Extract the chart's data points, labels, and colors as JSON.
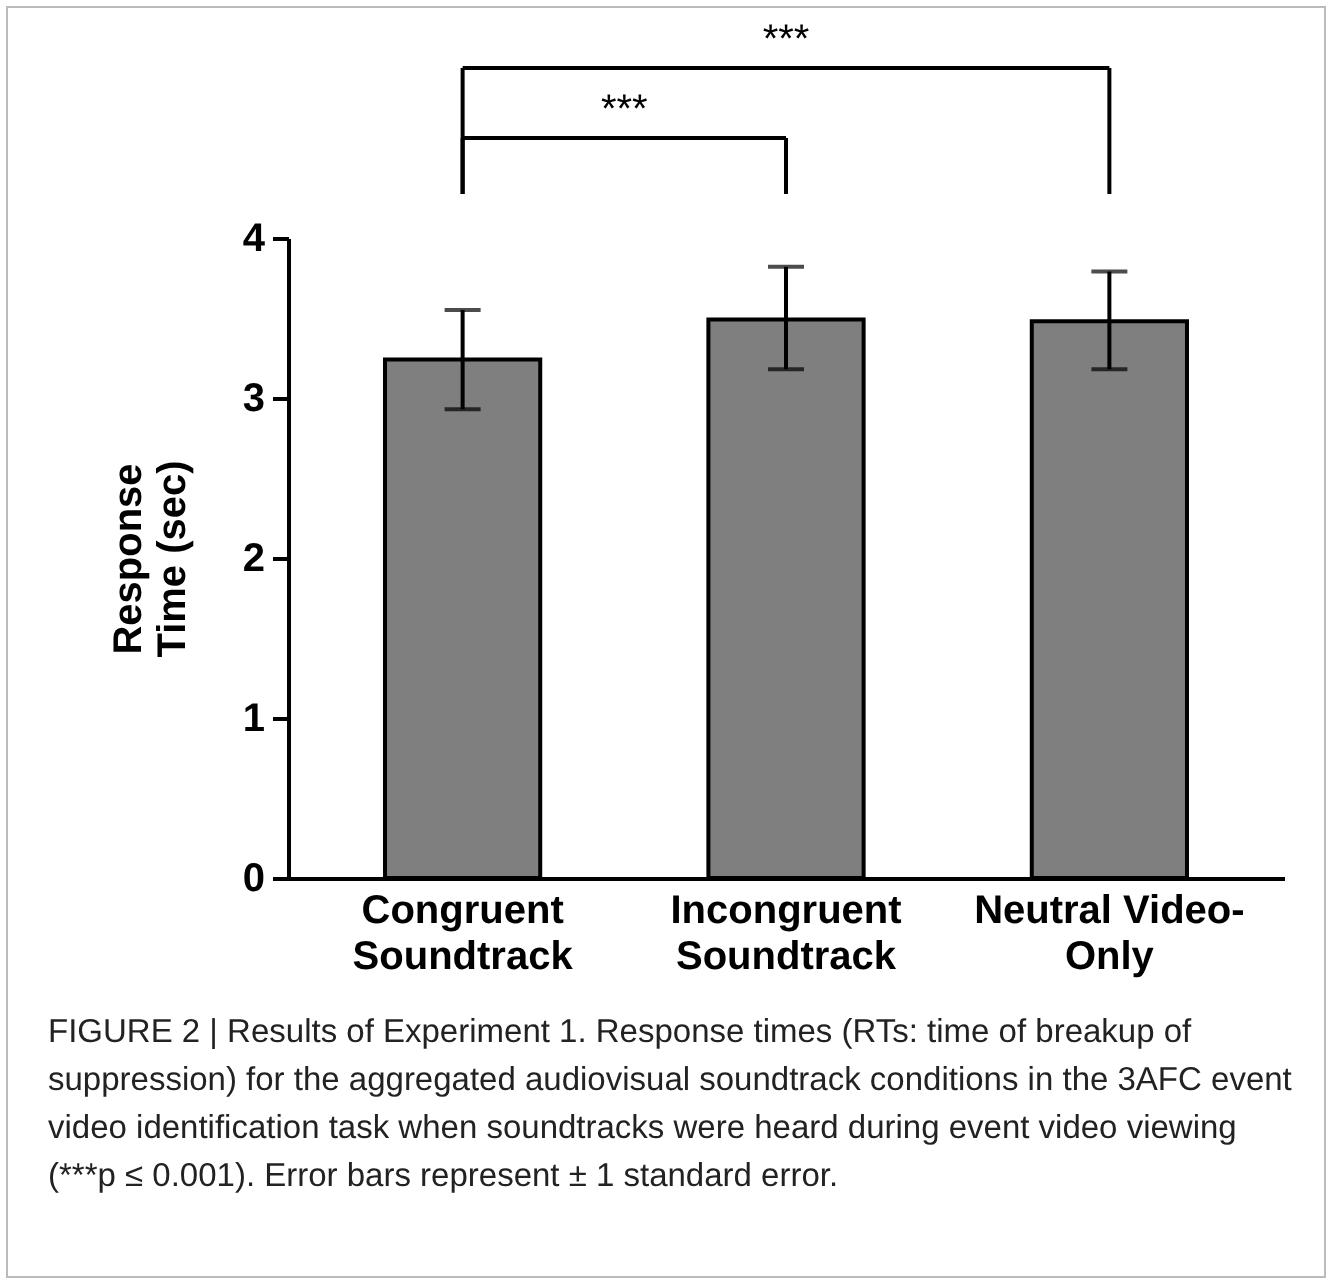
{
  "chart_data": {
    "type": "bar",
    "ylabel": "Response Time (sec)",
    "categories": [
      "Congruent Soundtrack",
      "Incongruent Soundtrack",
      "Neutral Video-Only"
    ],
    "values": [
      3.24,
      3.49,
      3.48
    ],
    "color": "#7f7f7f",
    "errors": [
      [
        2.93,
        3.55
      ],
      [
        3.18,
        3.82
      ],
      [
        3.18,
        3.79
      ]
    ],
    "ylim": [
      0,
      4
    ],
    "yticks": [
      0,
      1,
      2,
      3,
      4
    ],
    "grid": false,
    "annotations": [
      "***",
      "***",
      "FIGURE 2 | Results of Experiment 1. Response times (RTs: time of breakup of suppression) for the aggregated audiovisual soundtrack conditions in the 3AFC event video identification task when soundtracks were heard during event video viewing (***p ≤ 0.001). Error bars represent ± 1 standard error."
    ]
  }
}
